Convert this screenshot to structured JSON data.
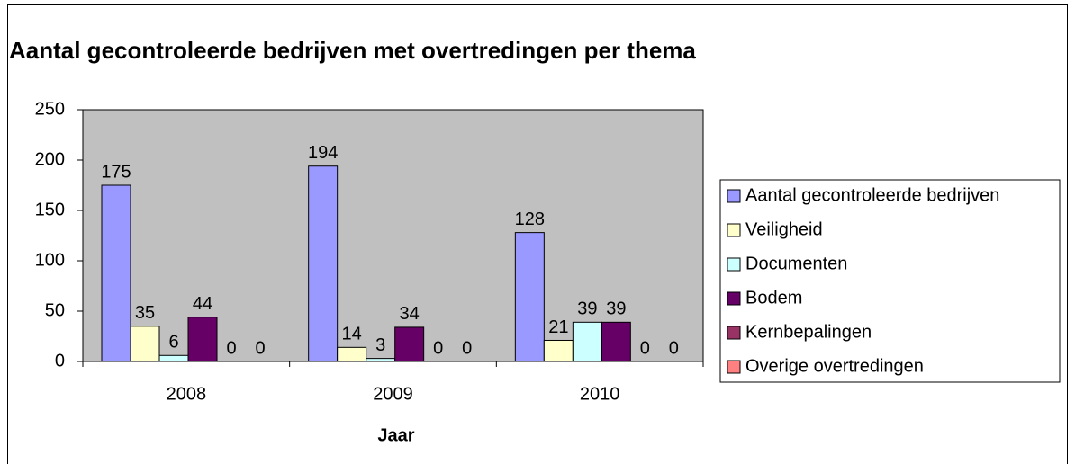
{
  "chart_data": {
    "type": "bar",
    "title": "Aantal gecontroleerde bedrijven met overtredingen per thema",
    "x_label": "Jaar",
    "categories": [
      "2008",
      "2009",
      "2010"
    ],
    "series": [
      {
        "name": "Aantal gecontroleerde bedrijven",
        "color": "#9999ff",
        "values": [
          175,
          194,
          128
        ]
      },
      {
        "name": "Veiligheid",
        "color": "#ffffcc",
        "values": [
          35,
          14,
          21
        ]
      },
      {
        "name": "Documenten",
        "color": "#ccffff",
        "values": [
          6,
          3,
          39
        ]
      },
      {
        "name": "Bodem",
        "color": "#660066",
        "values": [
          44,
          34,
          39
        ]
      },
      {
        "name": "Kernbepalingen",
        "color": "#993366",
        "values": [
          0,
          0,
          0
        ]
      },
      {
        "name": "Overige overtredingen",
        "color": "#ff8080",
        "values": [
          0,
          0,
          0
        ]
      }
    ],
    "ylim": [
      0,
      250
    ],
    "yticks": [
      0,
      50,
      100,
      150,
      200,
      250
    ],
    "grid": false,
    "legend": "right",
    "plot_background": "#c0c0c0"
  }
}
